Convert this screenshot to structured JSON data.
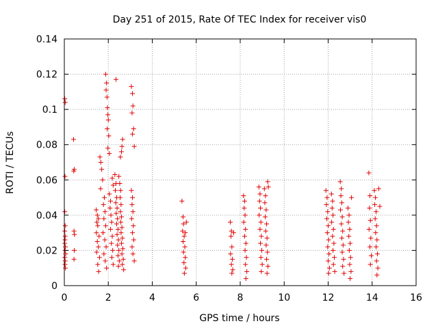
{
  "chart_data": {
    "type": "scatter",
    "title": "Day 251 of 2015, Rate Of TEC Index for receiver vis0",
    "xlabel": "GPS time / hours",
    "ylabel": "ROTI / TECUs",
    "xlim": [
      0,
      16
    ],
    "ylim": [
      0,
      0.14
    ],
    "x_ticks": [
      0,
      2,
      4,
      6,
      8,
      10,
      12,
      14,
      16
    ],
    "y_ticks": [
      0,
      0.02,
      0.04,
      0.06,
      0.08,
      0.1,
      0.12,
      0.14
    ],
    "x_tick_labels": [
      "0",
      "2",
      "4",
      "6",
      "8",
      "10",
      "12",
      "14",
      "16"
    ],
    "y_tick_labels": [
      "0",
      "0.02",
      "0.04",
      "0.06",
      "0.08",
      "0.1",
      "0.12",
      "0.14"
    ],
    "grid": true,
    "marker": "+",
    "series": [
      {
        "name": "ROTI",
        "color": "#e00000",
        "points": [
          [
            0.02,
            0.106
          ],
          [
            0.04,
            0.104
          ],
          [
            0.03,
            0.062
          ],
          [
            0.02,
            0.042
          ],
          [
            0.04,
            0.034
          ],
          [
            0.02,
            0.031
          ],
          [
            0.04,
            0.028
          ],
          [
            0.03,
            0.026
          ],
          [
            0.02,
            0.024
          ],
          [
            0.05,
            0.022
          ],
          [
            0.03,
            0.02
          ],
          [
            0.06,
            0.018
          ],
          [
            0.02,
            0.016
          ],
          [
            0.04,
            0.014
          ],
          [
            0.03,
            0.012
          ],
          [
            0.05,
            0.01
          ],
          [
            0.42,
            0.083
          ],
          [
            0.45,
            0.066
          ],
          [
            0.43,
            0.065
          ],
          [
            0.44,
            0.031
          ],
          [
            0.46,
            0.029
          ],
          [
            0.45,
            0.02
          ],
          [
            0.44,
            0.015
          ],
          [
            1.45,
            0.043
          ],
          [
            1.5,
            0.04
          ],
          [
            1.55,
            0.038
          ],
          [
            1.48,
            0.036
          ],
          [
            1.52,
            0.034
          ],
          [
            1.46,
            0.03
          ],
          [
            1.58,
            0.028
          ],
          [
            1.5,
            0.025
          ],
          [
            1.55,
            0.022
          ],
          [
            1.47,
            0.019
          ],
          [
            1.6,
            0.016
          ],
          [
            1.52,
            0.012
          ],
          [
            1.56,
            0.008
          ],
          [
            1.62,
            0.073
          ],
          [
            1.66,
            0.07
          ],
          [
            1.7,
            0.066
          ],
          [
            1.74,
            0.06
          ],
          [
            1.65,
            0.055
          ],
          [
            1.82,
            0.05
          ],
          [
            1.78,
            0.046
          ],
          [
            1.85,
            0.042
          ],
          [
            1.8,
            0.038
          ],
          [
            1.88,
            0.034
          ],
          [
            1.76,
            0.03
          ],
          [
            1.84,
            0.026
          ],
          [
            1.9,
            0.022
          ],
          [
            1.8,
            0.018
          ],
          [
            1.86,
            0.014
          ],
          [
            1.92,
            0.01
          ],
          [
            1.88,
            0.12
          ],
          [
            1.92,
            0.115
          ],
          [
            1.9,
            0.111
          ],
          [
            1.94,
            0.107
          ],
          [
            1.96,
            0.101
          ],
          [
            1.98,
            0.097
          ],
          [
            2.0,
            0.094
          ],
          [
            1.95,
            0.089
          ],
          [
            2.02,
            0.085
          ],
          [
            1.98,
            0.078
          ],
          [
            2.05,
            0.075
          ],
          [
            2.05,
            0.052
          ],
          [
            2.1,
            0.048
          ],
          [
            2.08,
            0.044
          ],
          [
            2.12,
            0.04
          ],
          [
            2.15,
            0.036
          ],
          [
            2.1,
            0.032
          ],
          [
            2.18,
            0.028
          ],
          [
            2.14,
            0.024
          ],
          [
            2.2,
            0.02
          ],
          [
            2.16,
            0.016
          ],
          [
            2.22,
            0.012
          ],
          [
            2.18,
            0.061
          ],
          [
            2.22,
            0.057
          ],
          [
            2.3,
            0.063
          ],
          [
            2.35,
            0.058
          ],
          [
            2.32,
            0.054
          ],
          [
            2.38,
            0.05
          ],
          [
            2.34,
            0.047
          ],
          [
            2.4,
            0.044
          ],
          [
            2.36,
            0.041
          ],
          [
            2.42,
            0.038
          ],
          [
            2.38,
            0.035
          ],
          [
            2.44,
            0.032
          ],
          [
            2.4,
            0.029
          ],
          [
            2.46,
            0.026
          ],
          [
            2.42,
            0.023
          ],
          [
            2.48,
            0.02
          ],
          [
            2.44,
            0.017
          ],
          [
            2.5,
            0.014
          ],
          [
            2.46,
            0.011
          ],
          [
            2.35,
            0.117
          ],
          [
            2.48,
            0.062
          ],
          [
            2.52,
            0.058
          ],
          [
            2.56,
            0.054
          ],
          [
            2.54,
            0.05
          ],
          [
            2.58,
            0.046
          ],
          [
            2.55,
            0.042
          ],
          [
            2.6,
            0.039
          ],
          [
            2.57,
            0.036
          ],
          [
            2.62,
            0.033
          ],
          [
            2.58,
            0.03
          ],
          [
            2.64,
            0.027
          ],
          [
            2.6,
            0.024
          ],
          [
            2.66,
            0.021
          ],
          [
            2.62,
            0.018
          ],
          [
            2.68,
            0.015
          ],
          [
            2.64,
            0.012
          ],
          [
            2.7,
            0.009
          ],
          [
            2.55,
            0.073
          ],
          [
            2.6,
            0.076
          ],
          [
            2.65,
            0.083
          ],
          [
            2.62,
            0.079
          ],
          [
            3.05,
            0.054
          ],
          [
            3.1,
            0.05
          ],
          [
            3.08,
            0.046
          ],
          [
            3.12,
            0.042
          ],
          [
            3.06,
            0.038
          ],
          [
            3.14,
            0.034
          ],
          [
            3.1,
            0.03
          ],
          [
            3.16,
            0.026
          ],
          [
            3.08,
            0.022
          ],
          [
            3.12,
            0.018
          ],
          [
            3.18,
            0.014
          ],
          [
            3.05,
            0.113
          ],
          [
            3.1,
            0.109
          ],
          [
            3.12,
            0.102
          ],
          [
            3.08,
            0.098
          ],
          [
            3.15,
            0.089
          ],
          [
            3.1,
            0.086
          ],
          [
            3.18,
            0.079
          ],
          [
            5.35,
            0.048
          ],
          [
            5.4,
            0.039
          ],
          [
            5.42,
            0.035
          ],
          [
            5.38,
            0.031
          ],
          [
            5.45,
            0.028
          ],
          [
            5.4,
            0.025
          ],
          [
            5.48,
            0.022
          ],
          [
            5.42,
            0.019
          ],
          [
            5.5,
            0.016
          ],
          [
            5.44,
            0.013
          ],
          [
            5.52,
            0.01
          ],
          [
            5.46,
            0.007
          ],
          [
            5.55,
            0.036
          ],
          [
            5.5,
            0.03
          ],
          [
            7.55,
            0.036
          ],
          [
            7.6,
            0.031
          ],
          [
            7.58,
            0.028
          ],
          [
            7.62,
            0.022
          ],
          [
            7.56,
            0.018
          ],
          [
            7.64,
            0.015
          ],
          [
            7.6,
            0.012
          ],
          [
            7.66,
            0.009
          ],
          [
            7.62,
            0.007
          ],
          [
            7.7,
            0.03
          ],
          [
            8.15,
            0.051
          ],
          [
            8.2,
            0.048
          ],
          [
            8.18,
            0.044
          ],
          [
            8.22,
            0.04
          ],
          [
            8.16,
            0.036
          ],
          [
            8.24,
            0.032
          ],
          [
            8.2,
            0.028
          ],
          [
            8.26,
            0.024
          ],
          [
            8.22,
            0.02
          ],
          [
            8.28,
            0.016
          ],
          [
            8.24,
            0.012
          ],
          [
            8.3,
            0.008
          ],
          [
            8.26,
            0.004
          ],
          [
            8.85,
            0.056
          ],
          [
            8.9,
            0.052
          ],
          [
            8.88,
            0.048
          ],
          [
            8.92,
            0.044
          ],
          [
            8.86,
            0.04
          ],
          [
            8.94,
            0.036
          ],
          [
            8.9,
            0.032
          ],
          [
            8.96,
            0.028
          ],
          [
            8.92,
            0.024
          ],
          [
            8.98,
            0.02
          ],
          [
            8.94,
            0.016
          ],
          [
            9.0,
            0.012
          ],
          [
            8.96,
            0.008
          ],
          [
            9.1,
            0.055
          ],
          [
            9.15,
            0.051
          ],
          [
            9.12,
            0.047
          ],
          [
            9.18,
            0.043
          ],
          [
            9.14,
            0.039
          ],
          [
            9.2,
            0.035
          ],
          [
            9.16,
            0.031
          ],
          [
            9.22,
            0.027
          ],
          [
            9.18,
            0.023
          ],
          [
            9.24,
            0.019
          ],
          [
            9.2,
            0.015
          ],
          [
            9.26,
            0.011
          ],
          [
            9.22,
            0.007
          ],
          [
            9.25,
            0.059
          ],
          [
            9.28,
            0.056
          ],
          [
            11.9,
            0.054
          ],
          [
            11.95,
            0.05
          ],
          [
            11.92,
            0.046
          ],
          [
            11.98,
            0.042
          ],
          [
            11.94,
            0.038
          ],
          [
            12.0,
            0.034
          ],
          [
            11.96,
            0.03
          ],
          [
            12.02,
            0.026
          ],
          [
            11.98,
            0.022
          ],
          [
            12.04,
            0.018
          ],
          [
            12.0,
            0.014
          ],
          [
            12.06,
            0.01
          ],
          [
            12.02,
            0.007
          ],
          [
            12.15,
            0.052
          ],
          [
            12.2,
            0.048
          ],
          [
            12.18,
            0.044
          ],
          [
            12.22,
            0.04
          ],
          [
            12.16,
            0.036
          ],
          [
            12.24,
            0.032
          ],
          [
            12.2,
            0.028
          ],
          [
            12.26,
            0.024
          ],
          [
            12.22,
            0.02
          ],
          [
            12.28,
            0.016
          ],
          [
            12.24,
            0.012
          ],
          [
            12.3,
            0.008
          ],
          [
            12.55,
            0.059
          ],
          [
            12.6,
            0.055
          ],
          [
            12.58,
            0.051
          ],
          [
            12.62,
            0.047
          ],
          [
            12.56,
            0.043
          ],
          [
            12.64,
            0.039
          ],
          [
            12.6,
            0.035
          ],
          [
            12.66,
            0.031
          ],
          [
            12.62,
            0.027
          ],
          [
            12.68,
            0.023
          ],
          [
            12.64,
            0.019
          ],
          [
            12.7,
            0.015
          ],
          [
            12.66,
            0.011
          ],
          [
            12.72,
            0.007
          ],
          [
            12.9,
            0.044
          ],
          [
            12.95,
            0.04
          ],
          [
            12.92,
            0.036
          ],
          [
            12.98,
            0.032
          ],
          [
            12.94,
            0.028
          ],
          [
            13.0,
            0.024
          ],
          [
            12.96,
            0.02
          ],
          [
            13.02,
            0.016
          ],
          [
            12.98,
            0.012
          ],
          [
            13.04,
            0.008
          ],
          [
            13.0,
            0.004
          ],
          [
            13.06,
            0.05
          ],
          [
            13.85,
            0.064
          ],
          [
            13.9,
            0.051
          ],
          [
            13.88,
            0.044
          ],
          [
            13.92,
            0.037
          ],
          [
            13.86,
            0.032
          ],
          [
            13.94,
            0.027
          ],
          [
            13.9,
            0.022
          ],
          [
            13.96,
            0.017
          ],
          [
            13.92,
            0.012
          ],
          [
            14.1,
            0.054
          ],
          [
            14.15,
            0.05
          ],
          [
            14.12,
            0.046
          ],
          [
            14.18,
            0.042
          ],
          [
            14.14,
            0.038
          ],
          [
            14.2,
            0.034
          ],
          [
            14.16,
            0.03
          ],
          [
            14.22,
            0.026
          ],
          [
            14.18,
            0.022
          ],
          [
            14.24,
            0.018
          ],
          [
            14.2,
            0.014
          ],
          [
            14.26,
            0.01
          ],
          [
            14.22,
            0.006
          ],
          [
            14.3,
            0.055
          ],
          [
            14.35,
            0.045
          ]
        ]
      }
    ]
  }
}
